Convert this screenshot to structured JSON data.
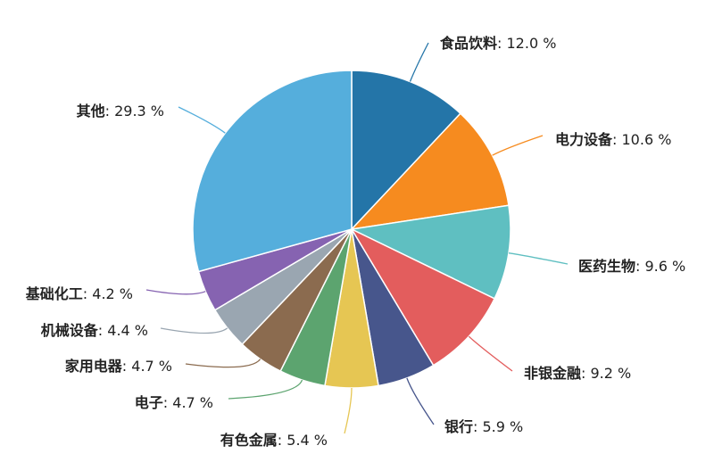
{
  "chart_data": {
    "type": "pie",
    "title": "",
    "unit_suffix": " %",
    "slices": [
      {
        "name": "食品饮料",
        "value": 12.0,
        "label": "12.0",
        "color": "#2475a8"
      },
      {
        "name": "电力设备",
        "value": 10.6,
        "label": "10.6",
        "color": "#f68b1f"
      },
      {
        "name": "医药生物",
        "value": 9.6,
        "label": "9.6",
        "color": "#5fbfc1"
      },
      {
        "name": "非银金融",
        "value": 9.2,
        "label": "9.2",
        "color": "#e35d5d"
      },
      {
        "name": "银行",
        "value": 5.9,
        "label": "5.9",
        "color": "#47568c"
      },
      {
        "name": "有色金属",
        "value": 5.4,
        "label": "5.4",
        "color": "#e6c653"
      },
      {
        "name": "电子",
        "value": 4.7,
        "label": "4.7",
        "color": "#5ca46f"
      },
      {
        "name": "家用电器",
        "value": 4.7,
        "label": "4.7",
        "color": "#8b6b4f"
      },
      {
        "name": "机械设备",
        "value": 4.4,
        "label": "4.4",
        "color": "#9aa6b1"
      },
      {
        "name": "基础化工",
        "value": 4.2,
        "label": "4.2",
        "color": "#8663b1"
      },
      {
        "name": "其他",
        "value": 29.3,
        "label": "29.3",
        "color": "#55aedc"
      }
    ]
  }
}
